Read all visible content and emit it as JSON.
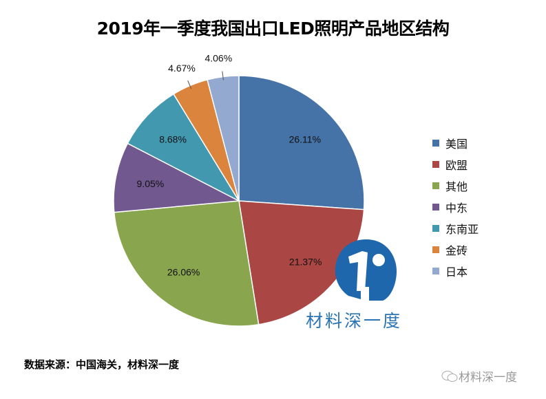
{
  "chart_data": {
    "type": "pie",
    "title": "2019年一季度我国出口LED照明产品地区结构",
    "start_angle": "12 o'clock",
    "direction": "clockwise",
    "slices": [
      {
        "label": "美国",
        "value": 26.11,
        "text": "26.11%",
        "color": "#4572A7"
      },
      {
        "label": "欧盟",
        "value": 21.37,
        "text": "21.37%",
        "color": "#AA4643"
      },
      {
        "label": "其他",
        "value": 26.06,
        "text": "26.06%",
        "color": "#89A54E"
      },
      {
        "label": "中东",
        "value": 9.05,
        "text": "9.05%",
        "color": "#71588F"
      },
      {
        "label": "东南亚",
        "value": 8.68,
        "text": "8.68%",
        "color": "#4198AF"
      },
      {
        "label": "金砖",
        "value": 4.67,
        "text": "4.67%",
        "color": "#DB843D"
      },
      {
        "label": "日本",
        "value": 4.06,
        "text": "4.06%",
        "color": "#93A9CF"
      }
    ],
    "legend_position": "right"
  },
  "source": "数据来源：中国海关，材料深一度",
  "watermark": {
    "logo_text": "材料深一度",
    "wechat_text": "材料深一度",
    "color": "#2a74b5"
  }
}
